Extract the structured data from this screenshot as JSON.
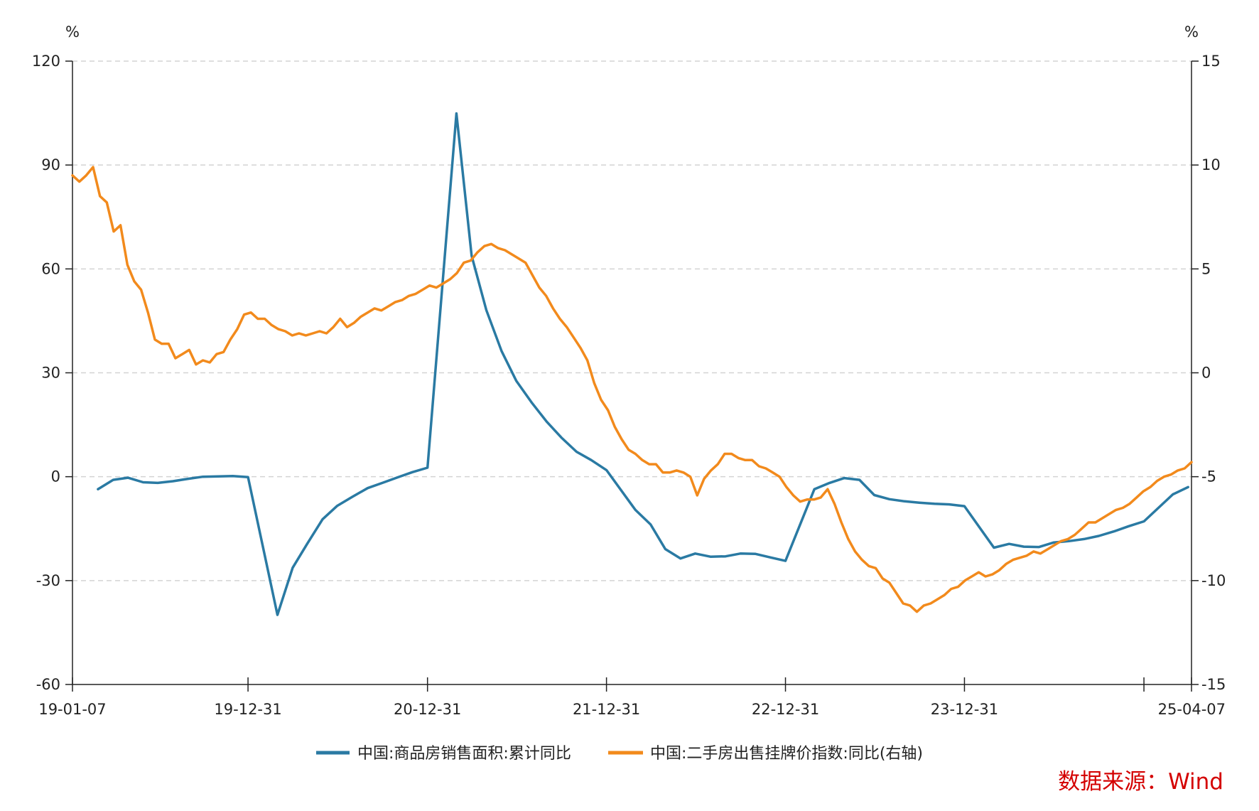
{
  "chart_data": {
    "type": "line",
    "left_unit": "%",
    "right_unit": "%",
    "left_axis": {
      "min": -60,
      "max": 120,
      "ticks": [
        120,
        90,
        60,
        30,
        0,
        -30,
        -60
      ],
      "tick_labels": [
        "120",
        "90",
        "60",
        "30",
        "0",
        "-30",
        "-60"
      ]
    },
    "right_axis": {
      "min": -15,
      "max": 15,
      "ticks": [
        15,
        10,
        5,
        0,
        -5,
        -10,
        -15
      ],
      "tick_labels": [
        "15",
        "10",
        "5",
        "0",
        "-5",
        "-10",
        "-15"
      ]
    },
    "x_axis": {
      "start": "2019-01-07",
      "end": "2025-04-07",
      "ticks": [
        "2019-01-07",
        "2019-12-31",
        "2020-12-31",
        "2021-12-31",
        "2022-12-31",
        "2023-12-31",
        "2024-12-31",
        "2025-04-07"
      ],
      "tick_labels": [
        "19-01-07",
        "19-12-31",
        "20-12-31",
        "21-12-31",
        "22-12-31",
        "23-12-31",
        "",
        "25-04-07"
      ]
    },
    "gridlines": "horizontal dashed",
    "legend_position": "bottom",
    "series": [
      {
        "name": "中国:商品房销售面积:累计同比",
        "axis": "left",
        "color": "#2a7aa3",
        "points": [
          [
            "2019-02-28",
            -3.6
          ],
          [
            "2019-03-31",
            -0.9
          ],
          [
            "2019-04-30",
            -0.3
          ],
          [
            "2019-05-31",
            -1.6
          ],
          [
            "2019-06-30",
            -1.8
          ],
          [
            "2019-07-31",
            -1.3
          ],
          [
            "2019-08-31",
            -0.6
          ],
          [
            "2019-09-30",
            0.0
          ],
          [
            "2019-10-31",
            0.1
          ],
          [
            "2019-11-30",
            0.2
          ],
          [
            "2019-12-31",
            -0.1
          ],
          [
            "2020-02-29",
            -39.9
          ],
          [
            "2020-03-31",
            -26.3
          ],
          [
            "2020-04-30",
            -19.3
          ],
          [
            "2020-05-31",
            -12.3
          ],
          [
            "2020-06-30",
            -8.4
          ],
          [
            "2020-07-31",
            -5.8
          ],
          [
            "2020-08-31",
            -3.3
          ],
          [
            "2020-09-30",
            -1.8
          ],
          [
            "2020-10-31",
            -0.2
          ],
          [
            "2020-11-30",
            1.3
          ],
          [
            "2020-12-31",
            2.6
          ],
          [
            "2021-02-28",
            104.9
          ],
          [
            "2021-03-31",
            63.8
          ],
          [
            "2021-04-30",
            48.1
          ],
          [
            "2021-05-31",
            36.3
          ],
          [
            "2021-06-30",
            27.7
          ],
          [
            "2021-07-31",
            21.5
          ],
          [
            "2021-08-31",
            15.9
          ],
          [
            "2021-09-30",
            11.3
          ],
          [
            "2021-10-31",
            7.2
          ],
          [
            "2021-11-30",
            4.8
          ],
          [
            "2021-12-31",
            1.9
          ],
          [
            "2022-02-28",
            -9.6
          ],
          [
            "2022-03-31",
            -13.8
          ],
          [
            "2022-04-30",
            -20.9
          ],
          [
            "2022-05-31",
            -23.6
          ],
          [
            "2022-06-30",
            -22.2
          ],
          [
            "2022-07-31",
            -23.1
          ],
          [
            "2022-08-31",
            -23.0
          ],
          [
            "2022-09-30",
            -22.2
          ],
          [
            "2022-10-31",
            -22.3
          ],
          [
            "2022-11-30",
            -23.3
          ],
          [
            "2022-12-31",
            -24.3
          ],
          [
            "2023-02-28",
            -3.6
          ],
          [
            "2023-03-31",
            -1.8
          ],
          [
            "2023-04-30",
            -0.4
          ],
          [
            "2023-05-31",
            -0.9
          ],
          [
            "2023-06-30",
            -5.3
          ],
          [
            "2023-07-31",
            -6.5
          ],
          [
            "2023-08-31",
            -7.1
          ],
          [
            "2023-09-30",
            -7.5
          ],
          [
            "2023-10-31",
            -7.8
          ],
          [
            "2023-11-30",
            -8.0
          ],
          [
            "2023-12-31",
            -8.5
          ],
          [
            "2024-02-29",
            -20.5
          ],
          [
            "2024-03-31",
            -19.4
          ],
          [
            "2024-04-30",
            -20.2
          ],
          [
            "2024-05-31",
            -20.3
          ],
          [
            "2024-06-30",
            -19.0
          ],
          [
            "2024-07-31",
            -18.6
          ],
          [
            "2024-08-31",
            -18.0
          ],
          [
            "2024-09-30",
            -17.1
          ],
          [
            "2024-10-31",
            -15.8
          ],
          [
            "2024-11-30",
            -14.3
          ],
          [
            "2024-12-31",
            -12.9
          ],
          [
            "2025-02-28",
            -5.1
          ],
          [
            "2025-03-31",
            -3.0
          ]
        ]
      },
      {
        "name": "中国:二手房出售挂牌价指数:同比(右轴)",
        "axis": "right",
        "color": "#f28a1c",
        "points": [
          [
            "2019-01-07",
            9.5
          ],
          [
            "2019-01-21",
            9.2
          ],
          [
            "2019-02-04",
            9.5
          ],
          [
            "2019-02-18",
            9.9
          ],
          [
            "2019-03-04",
            8.5
          ],
          [
            "2019-03-18",
            8.2
          ],
          [
            "2019-04-01",
            6.8
          ],
          [
            "2019-04-15",
            7.1
          ],
          [
            "2019-04-29",
            5.2
          ],
          [
            "2019-05-13",
            4.4
          ],
          [
            "2019-05-27",
            4.0
          ],
          [
            "2019-06-10",
            2.9
          ],
          [
            "2019-06-24",
            1.6
          ],
          [
            "2019-07-08",
            1.4
          ],
          [
            "2019-07-22",
            1.4
          ],
          [
            "2019-08-05",
            0.7
          ],
          [
            "2019-08-19",
            0.9
          ],
          [
            "2019-09-02",
            1.1
          ],
          [
            "2019-09-16",
            0.4
          ],
          [
            "2019-09-30",
            0.6
          ],
          [
            "2019-10-14",
            0.5
          ],
          [
            "2019-10-28",
            0.9
          ],
          [
            "2019-11-11",
            1.0
          ],
          [
            "2019-11-25",
            1.6
          ],
          [
            "2019-12-09",
            2.1
          ],
          [
            "2019-12-23",
            2.8
          ],
          [
            "2020-01-06",
            2.9
          ],
          [
            "2020-01-20",
            2.6
          ],
          [
            "2020-02-03",
            2.6
          ],
          [
            "2020-02-17",
            2.3
          ],
          [
            "2020-03-02",
            2.1
          ],
          [
            "2020-03-16",
            2.0
          ],
          [
            "2020-03-30",
            1.8
          ],
          [
            "2020-04-13",
            1.9
          ],
          [
            "2020-04-27",
            1.8
          ],
          [
            "2020-05-11",
            1.9
          ],
          [
            "2020-05-25",
            2.0
          ],
          [
            "2020-06-08",
            1.9
          ],
          [
            "2020-06-22",
            2.2
          ],
          [
            "2020-07-06",
            2.6
          ],
          [
            "2020-07-20",
            2.2
          ],
          [
            "2020-08-03",
            2.4
          ],
          [
            "2020-08-17",
            2.7
          ],
          [
            "2020-08-31",
            2.9
          ],
          [
            "2020-09-14",
            3.1
          ],
          [
            "2020-09-28",
            3.0
          ],
          [
            "2020-10-12",
            3.2
          ],
          [
            "2020-10-26",
            3.4
          ],
          [
            "2020-11-09",
            3.5
          ],
          [
            "2020-11-23",
            3.7
          ],
          [
            "2020-12-07",
            3.8
          ],
          [
            "2020-12-21",
            4.0
          ],
          [
            "2021-01-04",
            4.2
          ],
          [
            "2021-01-18",
            4.1
          ],
          [
            "2021-02-01",
            4.3
          ],
          [
            "2021-02-15",
            4.5
          ],
          [
            "2021-03-01",
            4.8
          ],
          [
            "2021-03-15",
            5.3
          ],
          [
            "2021-03-29",
            5.4
          ],
          [
            "2021-04-12",
            5.8
          ],
          [
            "2021-04-26",
            6.1
          ],
          [
            "2021-05-10",
            6.2
          ],
          [
            "2021-05-24",
            6.0
          ],
          [
            "2021-06-07",
            5.9
          ],
          [
            "2021-06-21",
            5.7
          ],
          [
            "2021-07-05",
            5.5
          ],
          [
            "2021-07-19",
            5.3
          ],
          [
            "2021-08-02",
            4.7
          ],
          [
            "2021-08-16",
            4.1
          ],
          [
            "2021-08-30",
            3.7
          ],
          [
            "2021-09-13",
            3.1
          ],
          [
            "2021-09-27",
            2.6
          ],
          [
            "2021-10-11",
            2.2
          ],
          [
            "2021-10-25",
            1.7
          ],
          [
            "2021-11-08",
            1.2
          ],
          [
            "2021-11-22",
            0.6
          ],
          [
            "2021-12-06",
            -0.5
          ],
          [
            "2021-12-20",
            -1.3
          ],
          [
            "2022-01-03",
            -1.8
          ],
          [
            "2022-01-17",
            -2.6
          ],
          [
            "2022-01-31",
            -3.2
          ],
          [
            "2022-02-14",
            -3.7
          ],
          [
            "2022-02-28",
            -3.9
          ],
          [
            "2022-03-14",
            -4.2
          ],
          [
            "2022-03-28",
            -4.4
          ],
          [
            "2022-04-11",
            -4.4
          ],
          [
            "2022-04-25",
            -4.8
          ],
          [
            "2022-05-09",
            -4.8
          ],
          [
            "2022-05-23",
            -4.7
          ],
          [
            "2022-06-06",
            -4.8
          ],
          [
            "2022-06-20",
            -5.0
          ],
          [
            "2022-07-04",
            -5.9
          ],
          [
            "2022-07-18",
            -5.1
          ],
          [
            "2022-08-01",
            -4.7
          ],
          [
            "2022-08-15",
            -4.4
          ],
          [
            "2022-08-29",
            -3.9
          ],
          [
            "2022-09-12",
            -3.9
          ],
          [
            "2022-09-26",
            -4.1
          ],
          [
            "2022-10-10",
            -4.2
          ],
          [
            "2022-10-24",
            -4.2
          ],
          [
            "2022-11-07",
            -4.5
          ],
          [
            "2022-11-21",
            -4.6
          ],
          [
            "2022-12-05",
            -4.8
          ],
          [
            "2022-12-19",
            -5.0
          ],
          [
            "2023-01-02",
            -5.5
          ],
          [
            "2023-01-16",
            -5.9
          ],
          [
            "2023-01-30",
            -6.2
          ],
          [
            "2023-02-13",
            -6.1
          ],
          [
            "2023-02-27",
            -6.1
          ],
          [
            "2023-03-13",
            -6.0
          ],
          [
            "2023-03-27",
            -5.6
          ],
          [
            "2023-04-10",
            -6.3
          ],
          [
            "2023-04-24",
            -7.2
          ],
          [
            "2023-05-08",
            -8.0
          ],
          [
            "2023-05-22",
            -8.6
          ],
          [
            "2023-06-05",
            -9.0
          ],
          [
            "2023-06-19",
            -9.3
          ],
          [
            "2023-07-03",
            -9.4
          ],
          [
            "2023-07-17",
            -9.9
          ],
          [
            "2023-07-31",
            -10.1
          ],
          [
            "2023-08-14",
            -10.6
          ],
          [
            "2023-08-28",
            -11.1
          ],
          [
            "2023-09-11",
            -11.2
          ],
          [
            "2023-09-25",
            -11.5
          ],
          [
            "2023-10-09",
            -11.2
          ],
          [
            "2023-10-23",
            -11.1
          ],
          [
            "2023-11-06",
            -10.9
          ],
          [
            "2023-11-20",
            -10.7
          ],
          [
            "2023-12-04",
            -10.4
          ],
          [
            "2023-12-18",
            -10.3
          ],
          [
            "2024-01-01",
            -10.0
          ],
          [
            "2024-01-15",
            -9.8
          ],
          [
            "2024-01-29",
            -9.6
          ],
          [
            "2024-02-12",
            -9.8
          ],
          [
            "2024-02-26",
            -9.7
          ],
          [
            "2024-03-11",
            -9.5
          ],
          [
            "2024-03-25",
            -9.2
          ],
          [
            "2024-04-08",
            -9.0
          ],
          [
            "2024-04-22",
            -8.9
          ],
          [
            "2024-05-06",
            -8.8
          ],
          [
            "2024-05-20",
            -8.6
          ],
          [
            "2024-06-03",
            -8.7
          ],
          [
            "2024-06-17",
            -8.5
          ],
          [
            "2024-07-01",
            -8.3
          ],
          [
            "2024-07-15",
            -8.1
          ],
          [
            "2024-07-29",
            -8.0
          ],
          [
            "2024-08-12",
            -7.8
          ],
          [
            "2024-08-26",
            -7.5
          ],
          [
            "2024-09-09",
            -7.2
          ],
          [
            "2024-09-23",
            -7.2
          ],
          [
            "2024-10-07",
            -7.0
          ],
          [
            "2024-10-21",
            -6.8
          ],
          [
            "2024-11-04",
            -6.6
          ],
          [
            "2024-11-18",
            -6.5
          ],
          [
            "2024-12-02",
            -6.3
          ],
          [
            "2024-12-16",
            -6.0
          ],
          [
            "2024-12-30",
            -5.7
          ],
          [
            "2025-01-13",
            -5.5
          ],
          [
            "2025-01-27",
            -5.2
          ],
          [
            "2025-02-10",
            -5.0
          ],
          [
            "2025-02-24",
            -4.9
          ],
          [
            "2025-03-10",
            -4.7
          ],
          [
            "2025-03-24",
            -4.6
          ],
          [
            "2025-04-07",
            -4.3
          ]
        ]
      }
    ]
  },
  "source": "数据来源：Wind"
}
